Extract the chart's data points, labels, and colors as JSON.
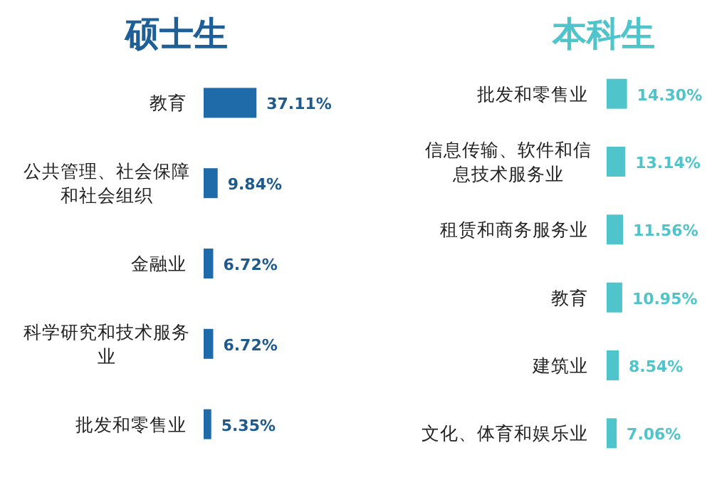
{
  "chart_data": [
    {
      "type": "bar",
      "title": "硕士生",
      "orientation": "horizontal",
      "data_labels": true,
      "categories": [
        "教育",
        "公共管理、社会保障和社会组织",
        "金融业",
        "科学研究和技术服务业",
        "批发和零售业"
      ],
      "series": [
        {
          "color": "#1f6aa8",
          "values": [
            37.11,
            9.84,
            6.72,
            6.72,
            5.35
          ],
          "value_labels": [
            "37.11%",
            "9.84%",
            "6.72%",
            "6.72%",
            "5.35%"
          ]
        }
      ]
    },
    {
      "type": "bar",
      "title": "本科生",
      "orientation": "horizontal",
      "data_labels": true,
      "categories": [
        "批发和零售业",
        "信息传输、软件和信息技术服务业",
        "租赁和商务服务业",
        "教育",
        "建筑业",
        "文化、体育和娱乐业"
      ],
      "series": [
        {
          "color": "#4fc4cb",
          "values": [
            14.3,
            13.14,
            11.56,
            10.95,
            8.54,
            7.06
          ],
          "value_labels": [
            "14.30%",
            "13.14%",
            "11.56%",
            "10.95%",
            "8.54%",
            "7.06%"
          ]
        }
      ]
    }
  ]
}
